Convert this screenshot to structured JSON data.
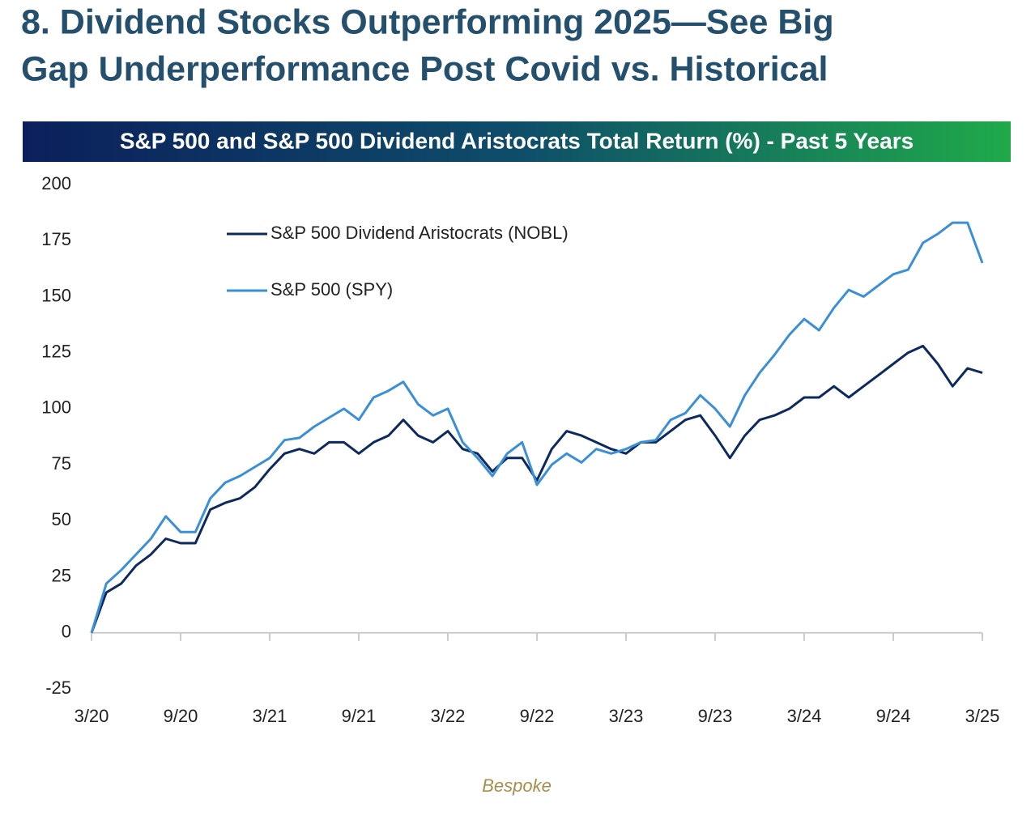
{
  "header": {
    "title": "8. Dividend Stocks Outperforming 2025—See Big Gap Underperformance Post Covid vs. Historical"
  },
  "chart_data": {
    "type": "line",
    "title": "S&P 500 and S&P 500 Dividend Aristocrats Total Return (%) - Past 5 Years",
    "source": "Bespoke",
    "categories": [
      "3/20",
      null,
      null,
      null,
      null,
      null,
      "9/20",
      null,
      null,
      null,
      null,
      null,
      "3/21",
      null,
      null,
      null,
      null,
      null,
      "9/21",
      null,
      null,
      null,
      null,
      null,
      "3/22",
      null,
      null,
      null,
      null,
      null,
      "9/22",
      null,
      null,
      null,
      null,
      null,
      "3/23",
      null,
      null,
      null,
      null,
      null,
      "9/23",
      null,
      null,
      null,
      null,
      null,
      "3/24",
      null,
      null,
      null,
      null,
      null,
      "9/24",
      null,
      null,
      null,
      null,
      null,
      "3/25"
    ],
    "series": [
      {
        "name": "S&P 500 Dividend Aristocrats (NOBL)",
        "color": "#0d2a5e",
        "values": [
          0,
          18,
          22,
          30,
          35,
          42,
          40,
          40,
          55,
          58,
          60,
          65,
          73,
          80,
          82,
          80,
          85,
          85,
          80,
          85,
          88,
          95,
          88,
          85,
          90,
          82,
          80,
          72,
          78,
          78,
          68,
          82,
          90,
          88,
          85,
          82,
          80,
          85,
          85,
          90,
          95,
          97,
          88,
          78,
          88,
          95,
          97,
          100,
          105,
          105,
          110,
          105,
          110,
          115,
          120,
          125,
          128,
          120,
          110,
          118,
          116
        ]
      },
      {
        "name": "S&P 500 (SPY)",
        "color": "#3a8fd6",
        "values": [
          0,
          22,
          28,
          35,
          42,
          52,
          45,
          45,
          60,
          67,
          70,
          74,
          78,
          86,
          87,
          92,
          96,
          100,
          95,
          105,
          108,
          112,
          102,
          97,
          100,
          85,
          78,
          70,
          80,
          85,
          66,
          75,
          80,
          76,
          82,
          80,
          82,
          85,
          86,
          95,
          98,
          106,
          100,
          92,
          106,
          116,
          124,
          133,
          140,
          135,
          145,
          153,
          150,
          155,
          160,
          162,
          174,
          178,
          183,
          183,
          165
        ]
      }
    ],
    "ylim": [
      -25,
      200
    ],
    "yticks": [
      -25,
      0,
      25,
      50,
      75,
      100,
      125,
      150,
      175,
      200
    ],
    "grid": false,
    "legend": "top-left"
  }
}
